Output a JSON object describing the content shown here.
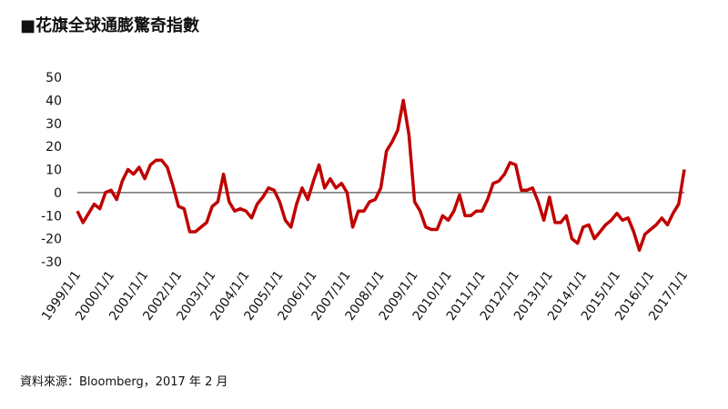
{
  "chart_data": {
    "type": "line",
    "title": "■花旗全球通膨驚奇指數",
    "source": "資料來源：Bloomberg，2017 年 2 月",
    "categories": [
      "1999/1/1",
      null,
      null,
      null,
      null,
      null,
      "2000/1/1",
      null,
      null,
      null,
      null,
      null,
      "2001/1/1",
      null,
      null,
      null,
      null,
      null,
      "2002/1/1",
      null,
      null,
      null,
      null,
      null,
      "2003/1/1",
      null,
      null,
      null,
      null,
      null,
      "2004/1/1",
      null,
      null,
      null,
      null,
      null,
      "2005/1/1",
      null,
      null,
      null,
      null,
      null,
      "2006/1/1",
      null,
      null,
      null,
      null,
      null,
      "2007/1/1",
      null,
      null,
      null,
      null,
      null,
      "2008/1/1",
      null,
      null,
      null,
      null,
      null,
      "2009/1/1",
      null,
      null,
      null,
      null,
      null,
      "2010/1/1",
      null,
      null,
      null,
      null,
      null,
      "2011/1/1",
      null,
      null,
      null,
      null,
      null,
      "2012/1/1",
      null,
      null,
      null,
      null,
      null,
      "2013/1/1",
      null,
      null,
      null,
      null,
      null,
      "2014/1/1",
      null,
      null,
      null,
      null,
      null,
      "2015/1/1",
      null,
      null,
      null,
      null,
      null,
      "2016/1/1",
      null,
      null,
      null,
      null,
      null,
      "2017/1/1"
    ],
    "series": [
      {
        "color": "#c00000",
        "values": [
          -8,
          -13,
          -9,
          -5,
          -7,
          0,
          1,
          -3,
          5,
          10,
          8,
          11,
          6,
          12,
          14,
          14,
          11,
          3,
          -6,
          -7,
          -17,
          -17,
          -15,
          -13,
          -6,
          -4,
          8,
          -4,
          -8,
          -7,
          -8,
          -11,
          -5,
          -2,
          2,
          1,
          -4,
          -12,
          -15,
          -5,
          2,
          -3,
          5,
          12,
          2,
          6,
          2,
          4,
          0,
          -15,
          -8,
          -8,
          -4,
          -3,
          2,
          18,
          22,
          27,
          40,
          25,
          -4,
          -8,
          -15,
          -16,
          -16,
          -10,
          -12,
          -8,
          -1,
          -10,
          -10,
          -8,
          -8,
          -3,
          4,
          5,
          8,
          13,
          12,
          1,
          1,
          2,
          -4,
          -12,
          -2,
          -13,
          -13,
          -10,
          -20,
          -22,
          -15,
          -14,
          -20,
          -17,
          -14,
          -12,
          -9,
          -12,
          -11,
          -17,
          -25,
          -18,
          -16,
          -14,
          -11,
          -14,
          -9,
          -5,
          10
        ]
      }
    ],
    "ylim": [
      -30,
      50
    ],
    "yticks": [
      -30,
      -20,
      -10,
      0,
      10,
      20,
      30,
      40,
      50
    ]
  }
}
